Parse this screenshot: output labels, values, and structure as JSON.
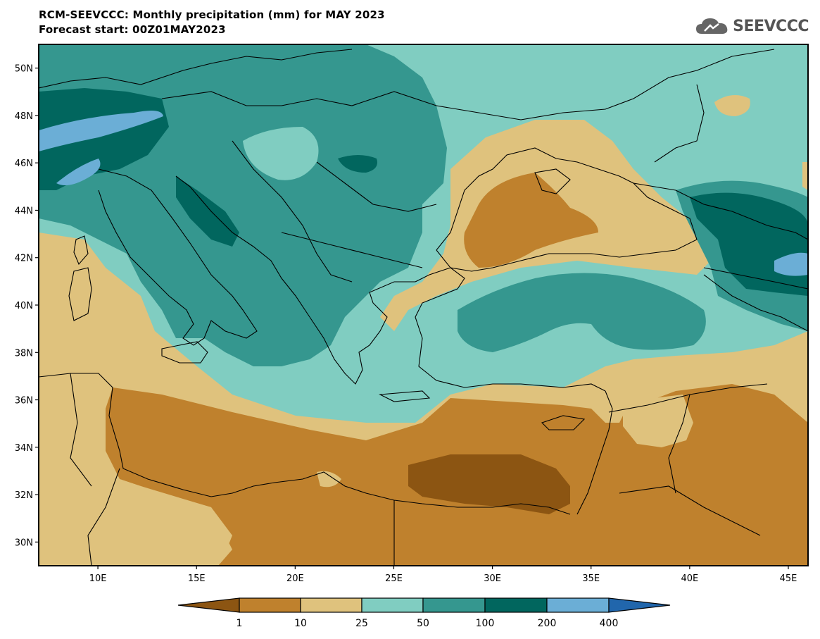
{
  "header": {
    "title": "RCM-SEEVCCC: Monthly precipitation (mm) for MAY 2023",
    "subtitle": "Forecast start: 00Z01MAY2023",
    "logo_text": "SEEVCCC",
    "logo_icon": "cloud-icon"
  },
  "map": {
    "lat_labels": [
      "50N",
      "48N",
      "46N",
      "44N",
      "42N",
      "40N",
      "38N",
      "36N",
      "34N",
      "32N",
      "30N"
    ],
    "lon_labels": [
      "10E",
      "15E",
      "20E",
      "25E",
      "30E",
      "35E",
      "40E",
      "45E"
    ],
    "lon_range": [
      7,
      46
    ],
    "lat_range": [
      29,
      51
    ]
  },
  "colorbar": {
    "labels": [
      "1",
      "10",
      "25",
      "50",
      "100",
      "200",
      "400"
    ],
    "colors": {
      "lt1": "#8c5512",
      "c1_10": "#bf812d",
      "c10_25": "#dfc27d",
      "c25_50": "#80cdc1",
      "c50_100": "#35978f",
      "c100_200": "#01665e",
      "c200_400": "#6baed6",
      "gt400": "#2166ac"
    }
  }
}
